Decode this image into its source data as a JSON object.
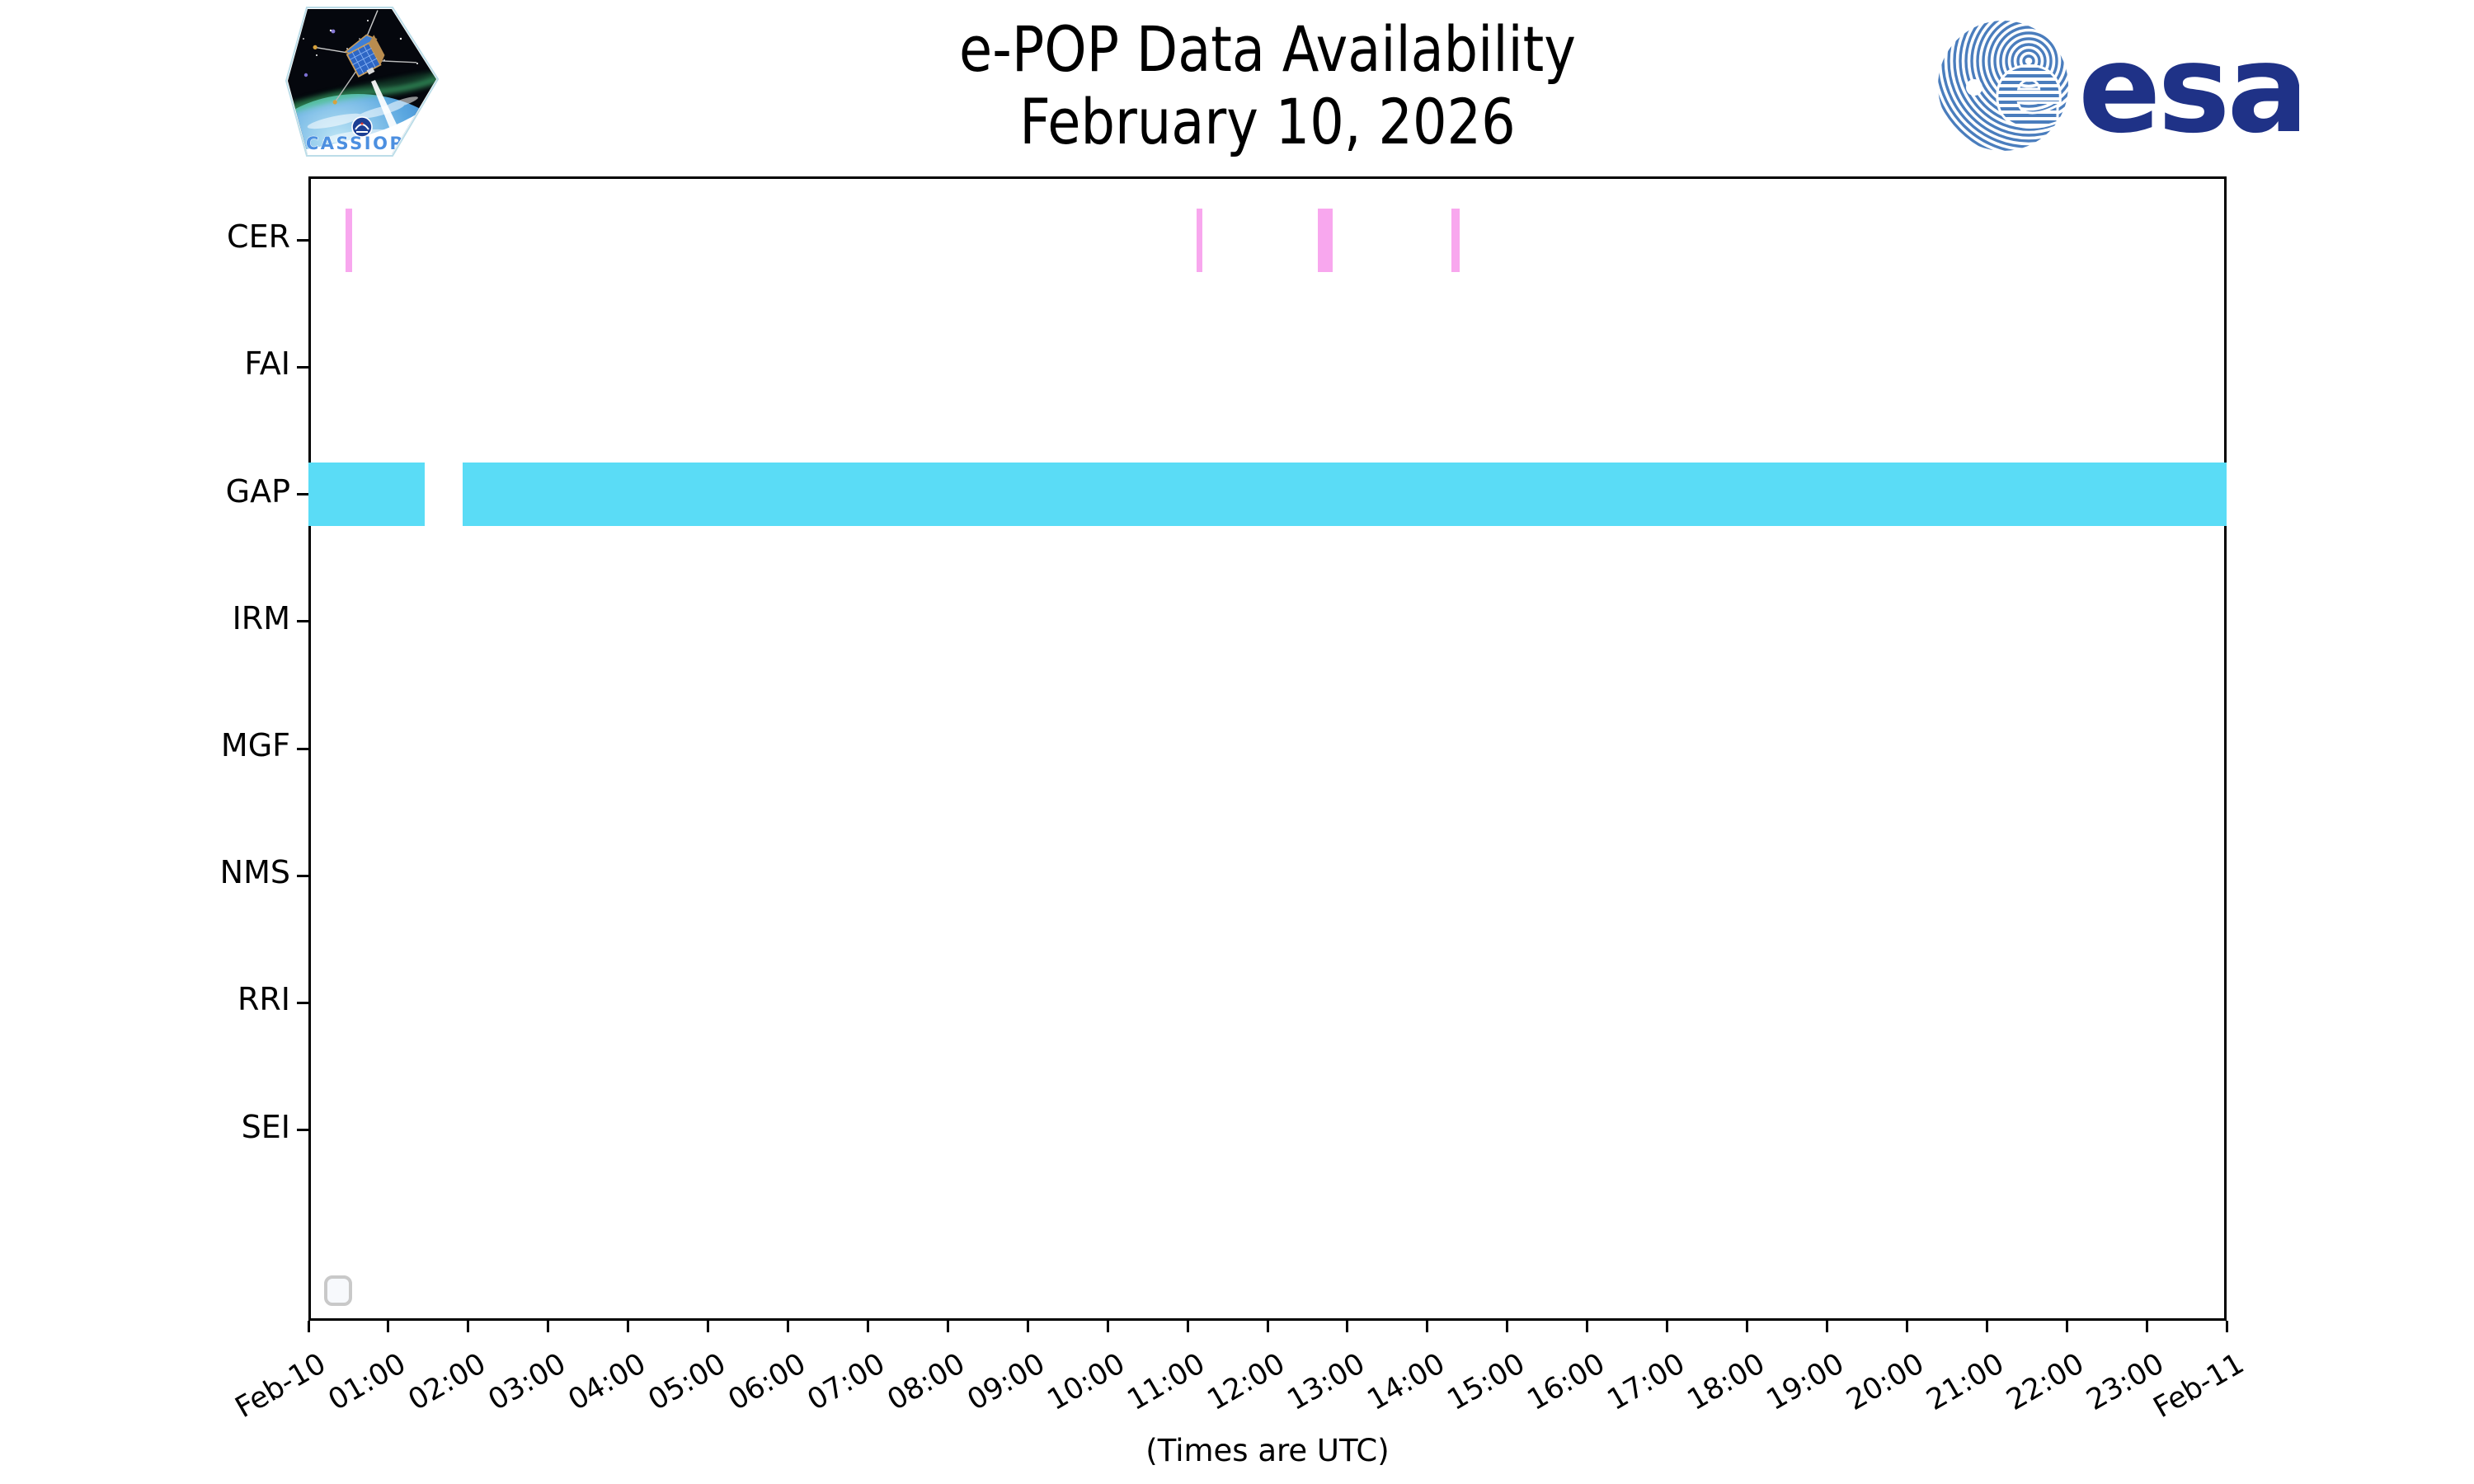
{
  "header": {
    "title_line1": "e-POP Data Availability",
    "title_line2": "February 10, 2026"
  },
  "branding": {
    "esa_wordmark": "esa",
    "cassiope_label": "CASSIOPE",
    "esa_navy": "#1f3287",
    "esa_globe_blue": "#4a7dbd",
    "cassiope_text_blue": "#4c8fe0"
  },
  "chart_data": {
    "type": "broken_barh_timeline",
    "title": "e-POP Data Availability",
    "subtitle": "February 10, 2026",
    "x_axis": {
      "start": "Feb-10 00:00 UTC",
      "end": "Feb-11 00:00 UTC",
      "hours_span": 24,
      "tick_interval_hours": 1,
      "tick_labels": [
        "Feb-10",
        "01:00",
        "02:00",
        "03:00",
        "04:00",
        "05:00",
        "06:00",
        "07:00",
        "08:00",
        "09:00",
        "10:00",
        "11:00",
        "12:00",
        "13:00",
        "14:00",
        "15:00",
        "16:00",
        "17:00",
        "18:00",
        "19:00",
        "20:00",
        "21:00",
        "22:00",
        "23:00",
        "Feb-11"
      ],
      "note": "(Times are UTC)",
      "label_rotation_deg": 30
    },
    "y_axis": {
      "categories": [
        "CER",
        "FAI",
        "GAP",
        "IRM",
        "MGF",
        "NMS",
        "RRI",
        "SEI"
      ],
      "blank_slot_at_bottom": true
    },
    "series": [
      {
        "instrument": "CER",
        "color": "#f8a7ee",
        "intervals": [
          [
            "00:28",
            "00:33"
          ],
          [
            "11:07",
            "11:11"
          ],
          [
            "12:38",
            "12:49"
          ],
          [
            "14:18",
            "14:24"
          ]
        ]
      },
      {
        "instrument": "FAI",
        "color": null,
        "intervals": []
      },
      {
        "instrument": "GAP",
        "color": "#5adcf6",
        "intervals": [
          [
            "00:00",
            "01:27"
          ],
          [
            "01:56",
            "24:00"
          ]
        ]
      },
      {
        "instrument": "IRM",
        "color": null,
        "intervals": []
      },
      {
        "instrument": "MGF",
        "color": null,
        "intervals": []
      },
      {
        "instrument": "NMS",
        "color": null,
        "intervals": []
      },
      {
        "instrument": "RRI",
        "color": null,
        "intervals": []
      },
      {
        "instrument": "SEI",
        "color": null,
        "intervals": []
      }
    ],
    "legend": {
      "visible": true,
      "entries": []
    },
    "grid": false,
    "bar_height_fraction": 0.5
  }
}
